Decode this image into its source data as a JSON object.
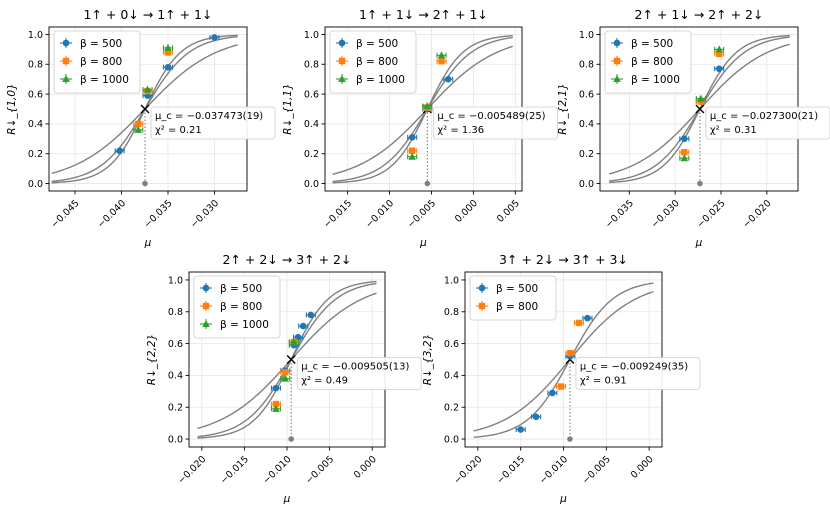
{
  "colors": {
    "beta500": "#1f77b4",
    "beta800": "#ff7f0e",
    "beta1000": "#2ca02c",
    "fit": "#808080",
    "crit": "#000000",
    "axis": "#000000",
    "grid": "#e6e6e6"
  },
  "chart_data": [
    {
      "type": "scatter",
      "title": "1↑ + 0↓ → 1↑ + 1↓",
      "xlabel": "μ",
      "ylabel": "R↓_{1,0}",
      "xlim": [
        -0.0478,
        -0.0265
      ],
      "ylim": [
        -0.05,
        1.05
      ],
      "xticks": [
        -0.045,
        -0.04,
        -0.035,
        -0.03
      ],
      "xtick_labels": [
        "−0.045",
        "−0.040",
        "−0.035",
        "−0.030"
      ],
      "yticks": [
        0.0,
        0.2,
        0.4,
        0.6,
        0.8,
        1.0
      ],
      "ytick_labels": [
        "0.0",
        "0.2",
        "0.4",
        "0.6",
        "0.8",
        "1.0"
      ],
      "grid": true,
      "legend_position": "top-left",
      "mu_c": -0.037473,
      "mu_c_text": "μ_c = −0.037473(19)",
      "chi2_text": "χ² = 0.21",
      "fit_curves": [
        {
          "beta": 500,
          "slope": 260,
          "x_start": -0.0475,
          "x_end": -0.0275
        },
        {
          "beta": 800,
          "slope": 420,
          "x_start": -0.0475,
          "x_end": -0.0275
        },
        {
          "beta": 1000,
          "slope": 520,
          "x_start": -0.0475,
          "x_end": -0.0275
        }
      ],
      "series": [
        {
          "name": "β = 500",
          "marker": "circle",
          "color": "#1f77b4",
          "x": [
            -0.0402,
            -0.0372,
            -0.035,
            -0.03
          ],
          "y": [
            0.22,
            0.59,
            0.78,
            0.98
          ]
        },
        {
          "name": "β = 800",
          "marker": "square",
          "color": "#ff7f0e",
          "x": [
            -0.0382,
            -0.0372,
            -0.035
          ],
          "y": [
            0.4,
            0.62,
            0.88
          ]
        },
        {
          "name": "β = 1000",
          "marker": "triangle",
          "color": "#2ca02c",
          "x": [
            -0.0382,
            -0.0372,
            -0.035
          ],
          "y": [
            0.36,
            0.63,
            0.91
          ]
        }
      ]
    },
    {
      "type": "scatter",
      "title": "1↑ + 1↓ → 2↑ + 1↓",
      "xlabel": "μ",
      "ylabel": "R↓_{1,1}",
      "xlim": [
        -0.0177,
        0.0058
      ],
      "ylim": [
        -0.05,
        1.05
      ],
      "xticks": [
        -0.015,
        -0.01,
        -0.005,
        0.0,
        0.005
      ],
      "xtick_labels": [
        "−0.015",
        "−0.010",
        "−0.005",
        "0.000",
        "0.005"
      ],
      "yticks": [
        0.0,
        0.2,
        0.4,
        0.6,
        0.8,
        1.0
      ],
      "ytick_labels": [
        "0.0",
        "0.2",
        "0.4",
        "0.6",
        "0.8",
        "1.0"
      ],
      "grid": true,
      "legend_position": "top-left",
      "mu_c": -0.005489,
      "mu_c_text": "μ_c = −0.005489(25)",
      "chi2_text": "χ² = 1.36",
      "fit_curves": [
        {
          "beta": 500,
          "slope": 240,
          "x_start": -0.0168,
          "x_end": 0.0047
        },
        {
          "beta": 800,
          "slope": 380,
          "x_start": -0.0168,
          "x_end": 0.0047
        },
        {
          "beta": 1000,
          "slope": 470,
          "x_start": -0.0168,
          "x_end": 0.0047
        }
      ],
      "series": [
        {
          "name": "β = 500",
          "marker": "circle",
          "color": "#1f77b4",
          "x": [
            -0.0073,
            -0.0055,
            -0.003
          ],
          "y": [
            0.31,
            0.5,
            0.7
          ]
        },
        {
          "name": "β = 800",
          "marker": "square",
          "color": "#ff7f0e",
          "x": [
            -0.0073,
            -0.0055,
            -0.0038
          ],
          "y": [
            0.22,
            0.51,
            0.82
          ]
        },
        {
          "name": "β = 1000",
          "marker": "triangle",
          "color": "#2ca02c",
          "x": [
            -0.0073,
            -0.0055,
            -0.0038
          ],
          "y": [
            0.18,
            0.52,
            0.86
          ]
        }
      ]
    },
    {
      "type": "scatter",
      "title": "2↑ + 1↓ → 2↑ + 2↓",
      "xlabel": "μ",
      "ylabel": "R↓_{2,1}",
      "xlim": [
        -0.0382,
        -0.0166
      ],
      "ylim": [
        -0.05,
        1.05
      ],
      "xticks": [
        -0.035,
        -0.03,
        -0.025,
        -0.02
      ],
      "xtick_labels": [
        "−0.035",
        "−0.030",
        "−0.025",
        "−0.020"
      ],
      "yticks": [
        0.0,
        0.2,
        0.4,
        0.6,
        0.8,
        1.0
      ],
      "ytick_labels": [
        "0.0",
        "0.2",
        "0.4",
        "0.6",
        "0.8",
        "1.0"
      ],
      "grid": true,
      "legend_position": "top-left",
      "mu_c": -0.0273,
      "mu_c_text": "μ_c = −0.027300(21)",
      "chi2_text": "χ² = 0.31",
      "fit_curves": [
        {
          "beta": 500,
          "slope": 270,
          "x_start": -0.0372,
          "x_end": -0.0175
        },
        {
          "beta": 800,
          "slope": 410,
          "x_start": -0.0372,
          "x_end": -0.0175
        },
        {
          "beta": 1000,
          "slope": 500,
          "x_start": -0.0372,
          "x_end": -0.0175
        }
      ],
      "series": [
        {
          "name": "β = 500",
          "marker": "circle",
          "color": "#1f77b4",
          "x": [
            -0.029,
            -0.0272,
            -0.0252
          ],
          "y": [
            0.3,
            0.55,
            0.77
          ]
        },
        {
          "name": "β = 800",
          "marker": "square",
          "color": "#ff7f0e",
          "x": [
            -0.029,
            -0.0272,
            -0.0252
          ],
          "y": [
            0.21,
            0.55,
            0.87
          ]
        },
        {
          "name": "β = 1000",
          "marker": "triangle",
          "color": "#2ca02c",
          "x": [
            -0.029,
            -0.0272,
            -0.0252
          ],
          "y": [
            0.17,
            0.57,
            0.9
          ]
        }
      ]
    },
    {
      "type": "scatter",
      "title": "2↑ + 2↓ → 3↑ + 2↓",
      "xlabel": "μ",
      "ylabel": "R↓_{2,2}",
      "xlim": [
        -0.0215,
        0.0015
      ],
      "ylim": [
        -0.05,
        1.05
      ],
      "xticks": [
        -0.02,
        -0.015,
        -0.01,
        -0.005,
        0.0
      ],
      "xtick_labels": [
        "−0.020",
        "−0.015",
        "−0.010",
        "−0.005",
        "0.000"
      ],
      "yticks": [
        0.0,
        0.2,
        0.4,
        0.6,
        0.8,
        1.0
      ],
      "ytick_labels": [
        "0.0",
        "0.2",
        "0.4",
        "0.6",
        "0.8",
        "1.0"
      ],
      "grid": true,
      "legend_position": "top-left",
      "mu_c": -0.009505,
      "mu_c_text": "μ_c = −0.009505(13)",
      "chi2_text": "χ² = 0.49",
      "fit_curves": [
        {
          "beta": 500,
          "slope": 240,
          "x_start": -0.0205,
          "x_end": 0.0005
        },
        {
          "beta": 800,
          "slope": 380,
          "x_start": -0.0205,
          "x_end": 0.0005
        },
        {
          "beta": 1000,
          "slope": 460,
          "x_start": -0.0205,
          "x_end": 0.0005
        }
      ],
      "series": [
        {
          "name": "β = 500",
          "marker": "circle",
          "color": "#1f77b4",
          "x": [
            -0.0113,
            -0.0102,
            -0.0092,
            -0.0087,
            -0.0081,
            -0.0072
          ],
          "y": [
            0.32,
            0.43,
            0.59,
            0.64,
            0.71,
            0.78
          ]
        },
        {
          "name": "β = 800",
          "marker": "square",
          "color": "#ff7f0e",
          "x": [
            -0.0113,
            -0.0102,
            -0.0092
          ],
          "y": [
            0.22,
            0.42,
            0.61
          ]
        },
        {
          "name": "β = 1000",
          "marker": "triangle",
          "color": "#2ca02c",
          "x": [
            -0.0113,
            -0.0102,
            -0.0092
          ],
          "y": [
            0.19,
            0.38,
            0.61
          ]
        }
      ]
    },
    {
      "type": "scatter",
      "title": "3↑ + 2↓ → 3↑ + 3↓",
      "xlabel": "μ",
      "ylabel": "R↓_{3,2}",
      "xlim": [
        -0.0215,
        0.0015
      ],
      "ylim": [
        -0.05,
        1.05
      ],
      "xticks": [
        -0.02,
        -0.015,
        -0.01,
        -0.005,
        0.0
      ],
      "xtick_labels": [
        "−0.020",
        "−0.015",
        "−0.010",
        "−0.005",
        "0.000"
      ],
      "yticks": [
        0.0,
        0.2,
        0.4,
        0.6,
        0.8,
        1.0
      ],
      "ytick_labels": [
        "0.0",
        "0.2",
        "0.4",
        "0.6",
        "0.8",
        "1.0"
      ],
      "grid": true,
      "legend_position": "top-left",
      "mu_c": -0.009249,
      "mu_c_text": "μ_c = −0.009249(35)",
      "chi2_text": "χ² = 0.91",
      "fit_curves": [
        {
          "beta": 500,
          "slope": 260,
          "x_start": -0.0205,
          "x_end": 0.0005
        },
        {
          "beta": 800,
          "slope": 400,
          "x_start": -0.0205,
          "x_end": 0.0005
        }
      ],
      "series": [
        {
          "name": "β = 500",
          "marker": "circle",
          "color": "#1f77b4",
          "x": [
            -0.015,
            -0.0132,
            -0.0113,
            -0.0092,
            -0.0072
          ],
          "y": [
            0.06,
            0.14,
            0.29,
            0.52,
            0.76
          ]
        },
        {
          "name": "β = 800",
          "marker": "square",
          "color": "#ff7f0e",
          "x": [
            -0.0103,
            -0.0092,
            -0.0082
          ],
          "y": [
            0.33,
            0.54,
            0.73
          ]
        }
      ]
    }
  ]
}
